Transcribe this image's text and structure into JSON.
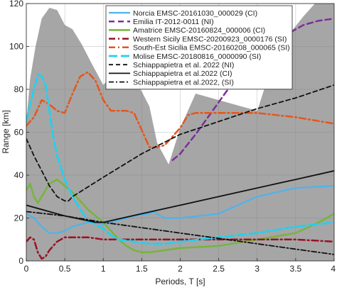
{
  "chart_data": {
    "type": "line",
    "xlabel": "Periods, T [s]",
    "ylabel": "Range [km]",
    "xlim": [
      0,
      4
    ],
    "ylim": [
      0,
      120
    ],
    "xticks": [
      0,
      0.5,
      1,
      1.5,
      2,
      2.5,
      3,
      3.5,
      4
    ],
    "xtick_labels": [
      "0",
      "0.5",
      "1",
      "1.5",
      "2",
      "2.5",
      "3",
      "3.5",
      "4"
    ],
    "yticks": [
      0,
      20,
      40,
      60,
      80,
      100,
      120
    ],
    "ytick_labels": [
      "0",
      "20",
      "40",
      "60",
      "80",
      "100",
      "120"
    ],
    "grid": true,
    "legend_position": "top-right",
    "background_area": {
      "color": "#a6a6a6",
      "x": [
        0,
        0.05,
        0.12,
        0.2,
        0.3,
        0.4,
        0.5,
        0.6,
        0.72,
        0.85,
        1.0,
        1.1,
        1.2,
        1.35,
        1.5,
        1.6,
        1.7,
        1.85,
        2.0,
        2.2,
        2.5,
        2.8,
        3.0,
        3.2,
        3.4,
        3.6,
        3.75,
        3.9,
        4.0
      ],
      "y": [
        65,
        85,
        100,
        113,
        118,
        117,
        110,
        108,
        101,
        92,
        82,
        86,
        92,
        87,
        79,
        72,
        55,
        45,
        62,
        78,
        75,
        72,
        70,
        92,
        105,
        114,
        120,
        120,
        120
      ]
    },
    "series": [
      {
        "name": "Norcia EMSC-20161030_000029 (CI)",
        "color": "#4db3ec",
        "dash": "solid",
        "width": 2.2,
        "x": [
          0,
          0.1,
          0.2,
          0.3,
          0.4,
          0.5,
          0.6,
          0.7,
          0.8,
          0.9,
          1.0,
          1.2,
          1.4,
          1.6,
          1.65,
          1.7,
          1.8,
          2.0,
          2.5,
          3.0,
          3.5,
          4.0
        ],
        "y": [
          22,
          20,
          16,
          13,
          13,
          14,
          16,
          17,
          18,
          18,
          17,
          19,
          21,
          22,
          23,
          22,
          20,
          20,
          22,
          30,
          34,
          35
        ]
      },
      {
        "name": "Emilia IT-2012-0011 (NI)",
        "color": "#7d2f9a",
        "dash": "8,5",
        "width": 2.5,
        "x": [
          1.9,
          2.0,
          2.2,
          2.4,
          2.6,
          2.8,
          3.0,
          3.2,
          3.4,
          3.6,
          3.8,
          4.0
        ],
        "y": [
          47,
          50,
          59,
          69,
          79,
          87,
          93,
          100,
          106,
          110,
          112,
          113
        ]
      },
      {
        "name": "Amatrice EMSC-20160824_000006 (CI)",
        "color": "#76b53a",
        "dash": "solid",
        "width": 2.5,
        "x": [
          0,
          0.05,
          0.1,
          0.15,
          0.2,
          0.3,
          0.4,
          0.5,
          0.6,
          0.7,
          0.8,
          0.9,
          1.0,
          1.1,
          1.2,
          1.3,
          1.4,
          1.5,
          1.6,
          1.8,
          2.0,
          2.5,
          3.0,
          3.5,
          3.8,
          4.0
        ],
        "y": [
          33,
          36,
          30,
          27,
          30,
          36,
          38,
          35,
          32,
          28,
          24,
          21,
          18,
          14,
          10,
          7,
          5,
          4,
          4,
          5,
          6,
          7,
          10,
          13,
          18,
          22
        ]
      },
      {
        "name": "Western Sicily EMSC-20200923_0000176 (SI)",
        "color": "#9b1126",
        "dash": "9,4,2,4",
        "width": 2.5,
        "x": [
          0,
          0.05,
          0.1,
          0.15,
          0.2,
          0.25,
          0.3,
          0.4,
          0.5,
          0.6,
          0.8,
          1.0,
          1.5,
          2.0,
          2.5,
          3.0,
          3.5,
          4.0
        ],
        "y": [
          9,
          11,
          10,
          4,
          1,
          2,
          5,
          9,
          11,
          11,
          11,
          10,
          10,
          10,
          10,
          10,
          10,
          9
        ]
      },
      {
        "name": "South-Est Sicilia EMSC-20160208_000065 (SI)",
        "color": "#e5561c",
        "dash": "9,4,2,4",
        "width": 2.5,
        "x": [
          0,
          0.1,
          0.2,
          0.3,
          0.4,
          0.5,
          0.6,
          0.7,
          0.8,
          0.9,
          1.0,
          1.1,
          1.2,
          1.3,
          1.4,
          1.5,
          1.6,
          1.7,
          1.8,
          1.9,
          2.0,
          2.1,
          2.2,
          2.5,
          3.0,
          3.5,
          4.0
        ],
        "y": [
          63,
          67,
          75,
          73,
          70,
          69,
          78,
          86,
          88,
          84,
          75,
          70,
          70,
          70,
          69,
          61,
          53,
          53,
          54,
          58,
          62,
          68,
          69,
          69,
          69,
          67,
          64
        ]
      },
      {
        "name": "Molise EMSC-20180816_0000090 (SI)",
        "color": "#22d0ee",
        "dash": "12,5",
        "width": 2.8,
        "x": [
          0,
          0.05,
          0.1,
          0.15,
          0.2,
          0.25,
          0.3,
          0.35,
          0.4,
          0.5,
          0.6,
          0.7,
          0.8,
          0.9,
          1.0,
          1.1,
          1.2,
          1.4,
          1.6,
          1.8,
          2.0,
          2.5,
          3.0,
          3.5,
          4.0
        ],
        "y": [
          65,
          73,
          80,
          87,
          86,
          82,
          70,
          58,
          49,
          38,
          30,
          24,
          19,
          17,
          15,
          12,
          10,
          9,
          8,
          8,
          9,
          11,
          13,
          16,
          18
        ]
      },
      {
        "name": "Schiappapietra et al. 2022 (NI)",
        "color": "#111111",
        "dash": "6,4",
        "width": 1.8,
        "x": [
          0,
          0.1,
          0.2,
          0.3,
          0.4,
          0.5,
          0.55,
          0.6,
          1.0,
          1.5,
          2.0,
          2.5,
          3.0,
          3.5,
          4.0
        ],
        "y": [
          57,
          49,
          42,
          35,
          30,
          28,
          28,
          30,
          39,
          50,
          59,
          65,
          71,
          76,
          82
        ]
      },
      {
        "name": "Schiappapietra et al.2022 (CI)",
        "color": "#111111",
        "dash": "solid",
        "width": 1.8,
        "x": [
          0,
          0.5,
          0.9,
          1.0,
          1.5,
          2.0,
          2.5,
          3.0,
          3.5,
          4.0
        ],
        "y": [
          26,
          21,
          18,
          18,
          22,
          26,
          30,
          34,
          38,
          42
        ]
      },
      {
        "name": "Schiappapietra et al.2022, (SI)",
        "color": "#111111",
        "dash": "7,3,2,3",
        "width": 1.8,
        "x": [
          0,
          0.5,
          1.0,
          1.5,
          2.0,
          2.5,
          3.0,
          3.5,
          4.0
        ],
        "y": [
          23,
          21,
          18,
          15.5,
          13,
          10.5,
          8,
          5.5,
          3
        ]
      }
    ]
  }
}
